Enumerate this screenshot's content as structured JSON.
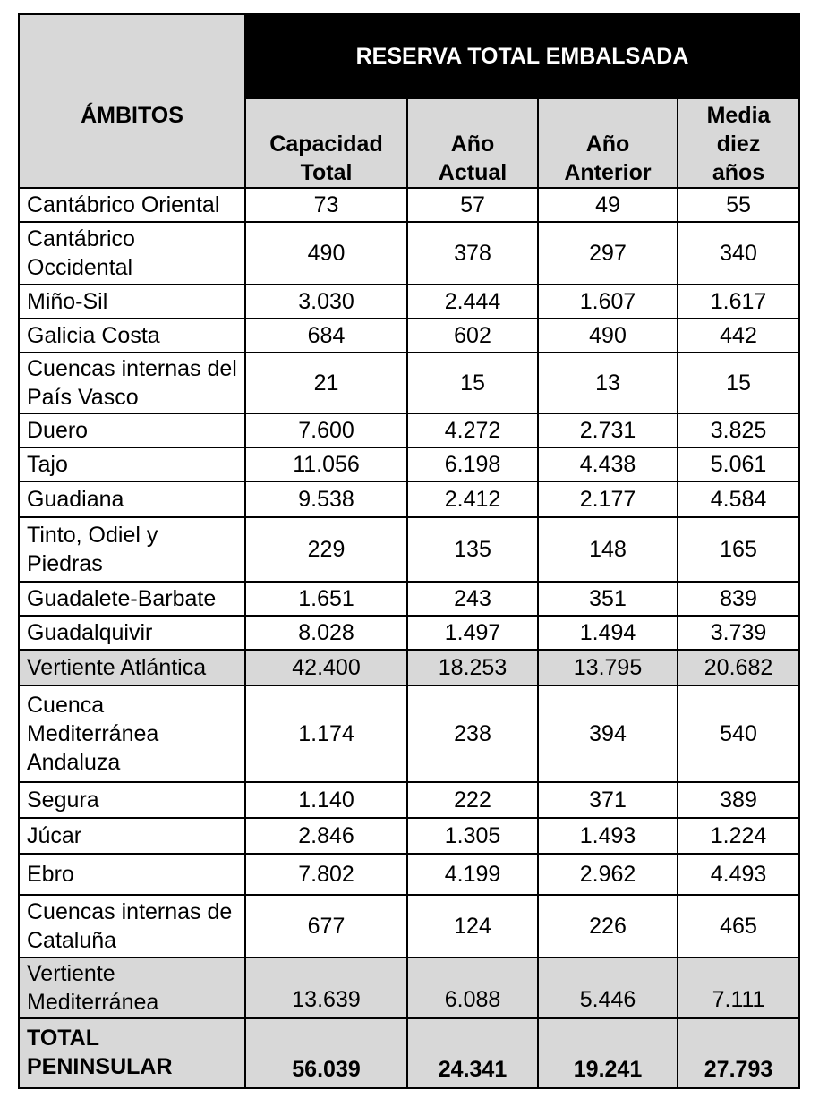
{
  "table": {
    "group_header": "RESERVA TOTAL EMBALSADA",
    "ambitos_header": "ÁMBITOS",
    "columns": [
      {
        "line1": "Capacidad",
        "line2": "Total",
        "line3": ""
      },
      {
        "line1": "Año",
        "line2": "Actual",
        "line3": ""
      },
      {
        "line1": "Año",
        "line2": "Anterior",
        "line3": ""
      },
      {
        "line1": "Media",
        "line2": "diez",
        "line3": "años"
      }
    ],
    "rows": [
      {
        "name": "Cantábrico Oriental",
        "vals": [
          "73",
          "57",
          "49",
          "55"
        ]
      },
      {
        "name": "Cantábrico Occidental",
        "vals": [
          "490",
          "378",
          "297",
          "340"
        ]
      },
      {
        "name": "Miño-Sil",
        "vals": [
          "3.030",
          "2.444",
          "1.607",
          "1.617"
        ]
      },
      {
        "name": "Galicia Costa",
        "vals": [
          "684",
          "602",
          "490",
          "442"
        ]
      },
      {
        "name": "Cuencas internas del País Vasco",
        "vals": [
          "21",
          "15",
          "13",
          "15"
        ]
      },
      {
        "name": "Duero",
        "vals": [
          "7.600",
          "4.272",
          "2.731",
          "3.825"
        ]
      },
      {
        "name": "Tajo",
        "vals": [
          "11.056",
          "6.198",
          "4.438",
          "5.061"
        ]
      },
      {
        "name": "Guadiana",
        "vals": [
          "9.538",
          "2.412",
          "2.177",
          "4.584"
        ]
      },
      {
        "name": "Tinto, Odiel y Piedras",
        "vals": [
          "229",
          "135",
          "148",
          "165"
        ]
      },
      {
        "name": "Guadalete-Barbate",
        "vals": [
          "1.651",
          "243",
          "351",
          "839"
        ]
      },
      {
        "name": "Guadalquivir",
        "vals": [
          "8.028",
          "1.497",
          "1.494",
          "3.739"
        ]
      },
      {
        "name": "Vertiente Atlántica",
        "vals": [
          "42.400",
          "18.253",
          "13.795",
          "20.682"
        ]
      },
      {
        "name": "Cuenca Mediterránea Andaluza",
        "vals": [
          "1.174",
          "238",
          "394",
          "540"
        ]
      },
      {
        "name": "Segura",
        "vals": [
          "1.140",
          "222",
          "371",
          "389"
        ]
      },
      {
        "name": "Júcar",
        "vals": [
          "2.846",
          "1.305",
          "1.493",
          "1.224"
        ]
      },
      {
        "name": "Ebro",
        "vals": [
          "7.802",
          "4.199",
          "2.962",
          "4.493"
        ]
      },
      {
        "name": "Cuencas internas de Cataluña",
        "vals": [
          "677",
          "124",
          "226",
          "465"
        ]
      },
      {
        "name": "Vertiente Mediterránea",
        "vals": [
          "13.639",
          "6.088",
          "5.446",
          "7.111"
        ]
      },
      {
        "name": "TOTAL PENINSULAR",
        "vals": [
          "56.039",
          "24.341",
          "19.241",
          "27.793"
        ]
      }
    ]
  }
}
